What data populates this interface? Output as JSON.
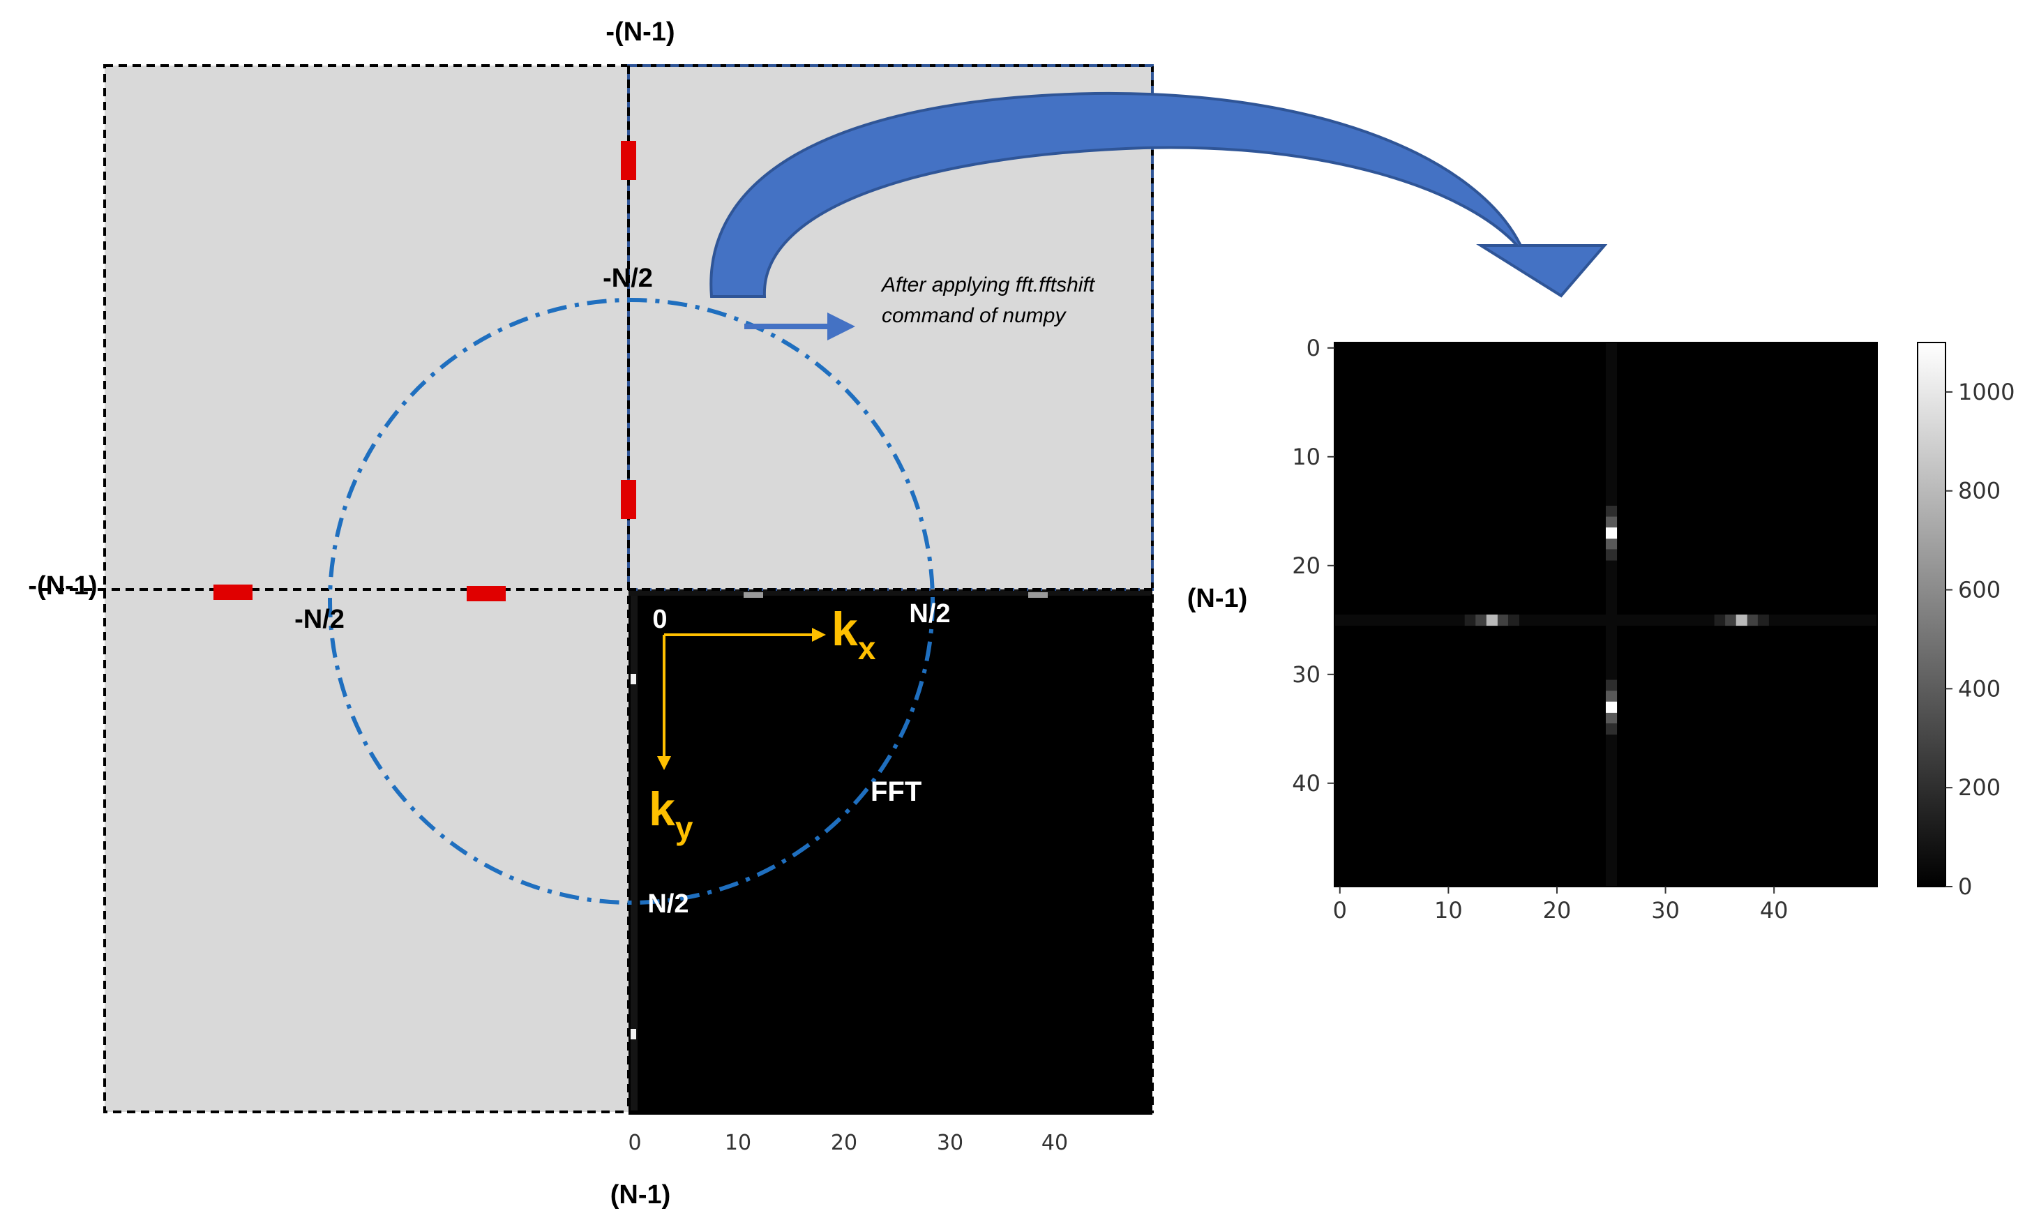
{
  "annotations": {
    "top_label": "-(N-1)",
    "left_label": "-(N-1)",
    "right_label": "(N-1)",
    "bottom_label": "(N-1)",
    "neg_half_top": "-N/2",
    "neg_half_left": "-N/2",
    "half_right": "N/2",
    "half_bottom": "N/2",
    "origin": "0",
    "kx_main": "k",
    "kx_sub": "x",
    "ky_main": "k",
    "ky_sub": "y",
    "fft_label": "FFT",
    "note_line1": "After applying fft.fftshift",
    "note_line2": "command of numpy"
  },
  "colors": {
    "quadrant_gray": "#d9d9d9",
    "dashed_border": "#000000",
    "blue_dashed_border": "#2f5597",
    "red_marker": "#e00000",
    "circle": "#1f6fbf",
    "axis_arrow": "#ffc000",
    "big_arrow": "#4472c4",
    "big_arrow_edge": "#2f5597",
    "small_arrow": "#4472c4"
  },
  "left_plot": {
    "x_ticks": [
      "0",
      "10",
      "20",
      "30",
      "40"
    ]
  },
  "right_plot": {
    "x_ticks": [
      "0",
      "10",
      "20",
      "30",
      "40"
    ],
    "y_ticks": [
      "0",
      "10",
      "20",
      "30",
      "40"
    ],
    "colorbar_ticks": [
      "0",
      "200",
      "400",
      "600",
      "800",
      "1000"
    ]
  },
  "chart_data": {
    "type": "heatmap",
    "grid_size": 50,
    "colormap": "gray",
    "vmin": 0,
    "vmax": 1100,
    "xlim": [
      0,
      49
    ],
    "ylim": [
      49,
      0
    ],
    "peaks": [
      {
        "x": 25,
        "y": 17,
        "value": 1100
      },
      {
        "x": 25,
        "y": 33,
        "value": 1100
      },
      {
        "x": 13.5,
        "y": 25,
        "value": 800
      },
      {
        "x": 36.5,
        "y": 25,
        "value": 800
      }
    ]
  }
}
